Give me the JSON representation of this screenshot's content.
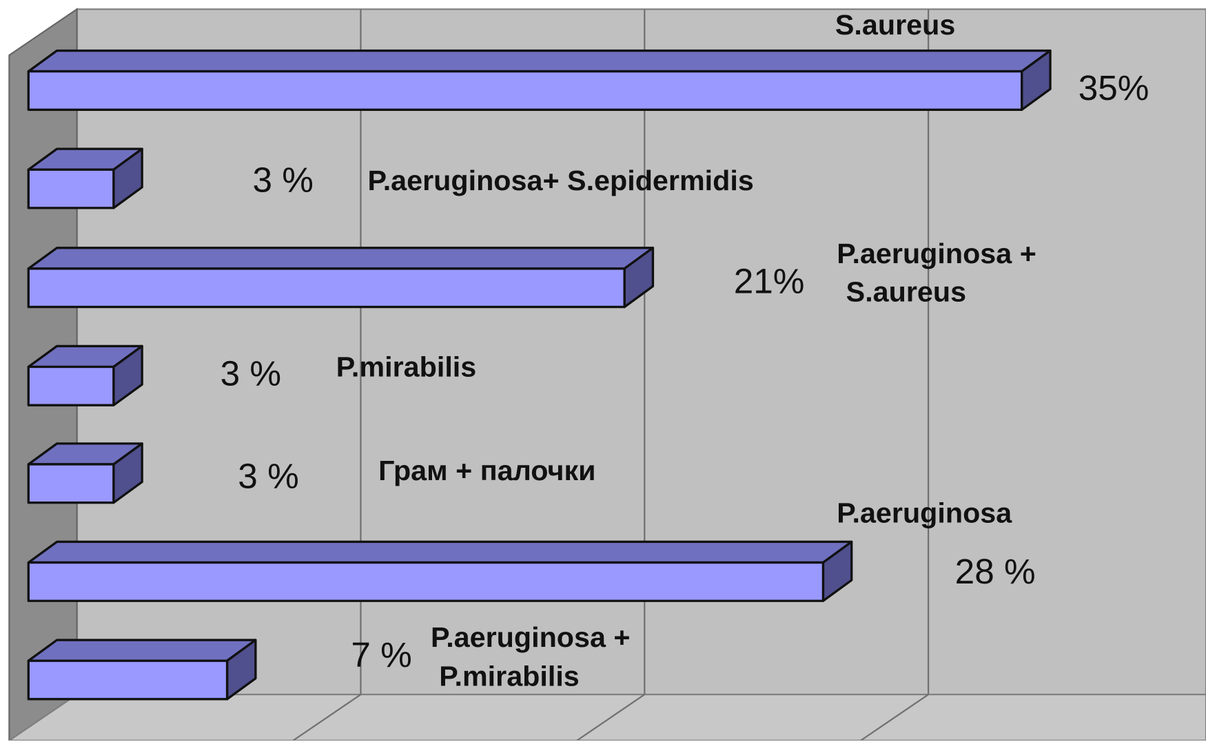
{
  "chart_data": {
    "type": "bar3d-horizontal",
    "categories": [
      [
        "S.aureus"
      ],
      [
        "P.aeruginosa+ S.epidermidis"
      ],
      [
        "P.aeruginosa +",
        "S.aureus"
      ],
      [
        "P.mirabilis"
      ],
      [
        "Грам + палочки"
      ],
      [
        "P.aeruginosa"
      ],
      [
        "P.aeruginosa +",
        "P.mirabilis"
      ]
    ],
    "values": [
      35,
      3,
      21,
      3,
      3,
      28,
      7
    ],
    "value_labels": [
      "35%",
      "3 %",
      "21%",
      "3 %",
      "3 %",
      "28 %",
      "7 %"
    ],
    "color": "#9999ff",
    "xlim": [
      0,
      40
    ],
    "xticks": [
      0,
      10,
      20,
      30,
      40
    ],
    "grid": true
  }
}
